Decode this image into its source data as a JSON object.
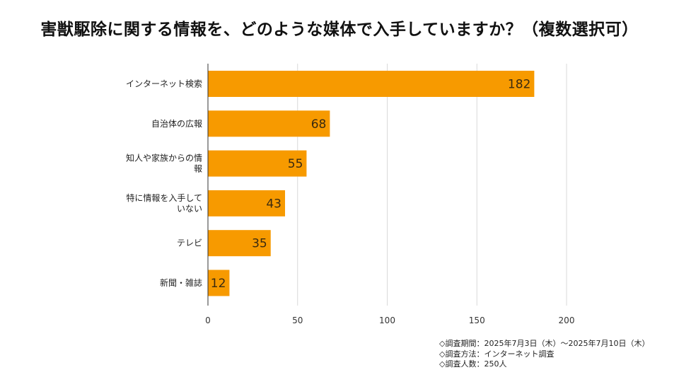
{
  "chart_data": {
    "type": "bar",
    "orientation": "horizontal",
    "title": "害獣駆除に関する情報を、どのような媒体で入手していますか？（複数選択可）",
    "categories": [
      [
        "インターネット検索"
      ],
      [
        "自治体の広報"
      ],
      [
        "知人や家族からの情",
        "報"
      ],
      [
        "特に情報を入手して",
        "いない"
      ],
      [
        "テレビ"
      ],
      [
        "新聞・雑誌"
      ]
    ],
    "values": [
      182,
      68,
      55,
      43,
      35,
      12
    ],
    "value_labels": [
      "182",
      "68",
      "55",
      "43",
      "35",
      "12"
    ],
    "xlim": [
      0,
      200
    ],
    "xticks": [
      0,
      50,
      100,
      150,
      200
    ],
    "xtick_labels": [
      "0",
      "50",
      "100",
      "150",
      "200"
    ],
    "grid": "vertical",
    "legend": "none",
    "bar_color": "#F79A00"
  },
  "notes": [
    "◇調査期間：2025年7月3日（木）〜2025年7月10日（木）",
    "◇調査方法：インターネット調査",
    "◇調査人数：250人"
  ]
}
